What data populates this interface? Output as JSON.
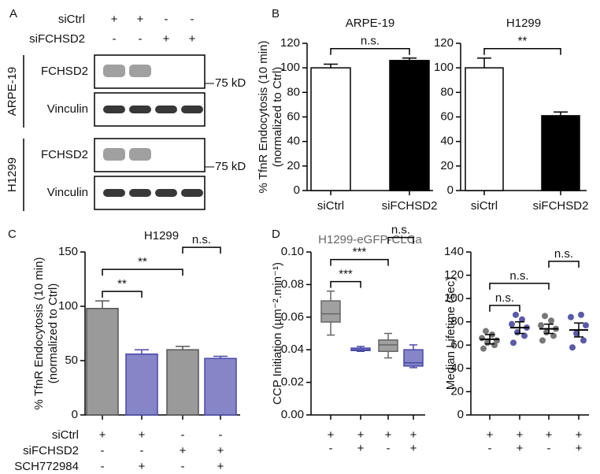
{
  "panel_labels": [
    "A",
    "B",
    "C",
    "D"
  ],
  "panel_a": {
    "rows": [
      {
        "name": "siCtrl",
        "signs": [
          "+",
          "+",
          "-",
          "-"
        ]
      },
      {
        "name": "siFCHSD2",
        "signs": [
          "-",
          "-",
          "+",
          "+"
        ]
      }
    ],
    "cell_lines": [
      {
        "name": "ARPE-19",
        "blots": [
          "FCHSD2",
          "Vinculin"
        ],
        "marker": "75 kD"
      },
      {
        "name": "H1299",
        "blots": [
          "FCHSD2",
          "Vinculin"
        ],
        "marker": "75 kD"
      }
    ]
  },
  "chart_data": [
    {
      "type": "bar",
      "title": "ARPE-19",
      "ylabel": [
        "% TfnR Endocytosis (10 min)",
        "(normalized to Ctrl)"
      ],
      "categories": [
        "siCtrl",
        "siFCHSD2"
      ],
      "values": [
        100,
        106
      ],
      "errors": [
        3,
        2
      ],
      "colors": [
        "#ffffff",
        "#000000"
      ],
      "edge_colors": [
        "#000000",
        "#000000"
      ],
      "ylim": [
        0,
        120
      ],
      "yticks": [
        0,
        20,
        40,
        60,
        80,
        100,
        120
      ],
      "annotations": [
        {
          "text": "n.s.",
          "from": 0,
          "to": 1
        }
      ]
    },
    {
      "type": "bar",
      "title": "H1299",
      "categories": [
        "siCtrl",
        "siFCHSD2"
      ],
      "values": [
        100,
        61
      ],
      "errors": [
        8,
        3
      ],
      "colors": [
        "#ffffff",
        "#000000"
      ],
      "edge_colors": [
        "#000000",
        "#000000"
      ],
      "ylim": [
        0,
        120
      ],
      "yticks": [
        0,
        20,
        40,
        60,
        80,
        100,
        120
      ],
      "annotations": [
        {
          "text": "**",
          "from": 0,
          "to": 1
        }
      ]
    },
    {
      "type": "bar",
      "title": "H1299",
      "ylabel": [
        "% TfnR Endocytosis (10 min)",
        "(normalized to Ctrl)"
      ],
      "values": [
        98,
        56,
        60,
        52
      ],
      "errors": [
        7,
        4,
        3,
        2
      ],
      "colors": [
        "#9a9a9a",
        "#8585c8",
        "#9a9a9a",
        "#8585c8"
      ],
      "edge_colors": [
        "#555555",
        "#4848a8",
        "#555555",
        "#4848a8"
      ],
      "ylim": [
        0,
        150
      ],
      "yticks": [
        0,
        50,
        100,
        150
      ],
      "annotations": [
        {
          "text": "**",
          "from": 0,
          "to": 1
        },
        {
          "text": "**",
          "from": 0,
          "to": 2
        },
        {
          "text": "n.s.",
          "from": 2,
          "to": 3
        }
      ],
      "conditions": [
        {
          "name": "siCtrl",
          "signs": [
            "+",
            "+",
            "-",
            "-"
          ]
        },
        {
          "name": "siFCHSD2",
          "signs": [
            "-",
            "-",
            "+",
            "+"
          ]
        },
        {
          "name": "SCH772984",
          "signs": [
            "-",
            "+",
            "-",
            "+"
          ]
        }
      ]
    },
    {
      "type": "box",
      "title": "H1299-eGFP-CLCa",
      "ylabel": [
        "CCP Initiation (µm⁻².min⁻¹)"
      ],
      "boxes": [
        {
          "min": 0.049,
          "q1": 0.057,
          "median": 0.062,
          "q3": 0.07,
          "max": 0.076
        },
        {
          "min": 0.039,
          "q1": 0.0395,
          "median": 0.04,
          "q3": 0.041,
          "max": 0.042
        },
        {
          "min": 0.035,
          "q1": 0.039,
          "median": 0.043,
          "q3": 0.046,
          "max": 0.05
        },
        {
          "min": 0.029,
          "q1": 0.03,
          "median": 0.032,
          "q3": 0.04,
          "max": 0.043
        }
      ],
      "colors": [
        "#a0a0a0",
        "#8585c8",
        "#a0a0a0",
        "#8585c8"
      ],
      "edge_colors": [
        "#666666",
        "#4848a8",
        "#666666",
        "#4848a8"
      ],
      "ylim": [
        0,
        0.1
      ],
      "yticks": [
        {
          "value": 0,
          "label": "0.00"
        },
        {
          "value": 0.02,
          "label": "0.02"
        },
        {
          "value": 0.04,
          "label": "0.04"
        },
        {
          "value": 0.06,
          "label": "0.06"
        },
        {
          "value": 0.08,
          "label": "0.08"
        },
        {
          "value": 0.1,
          "label": "0.10"
        }
      ],
      "annotations": [
        {
          "text": "***",
          "from": 0,
          "to": 1
        },
        {
          "text": "***",
          "from": 0,
          "to": 2
        },
        {
          "text": "n.s.",
          "from": 2,
          "to": 3
        }
      ],
      "conditions": [
        [
          "+",
          "+",
          "+",
          "+"
        ],
        [
          "-",
          "+",
          "-",
          "+"
        ]
      ]
    },
    {
      "type": "dot",
      "ylabel": [
        "Median Lifetime (sec)"
      ],
      "groups": [
        {
          "points": [
            57,
            60,
            62,
            64,
            66,
            69,
            72
          ],
          "mean": 65,
          "sem": 4,
          "color": "#777777"
        },
        {
          "points": [
            62,
            68,
            71,
            75,
            78,
            82,
            86
          ],
          "mean": 75,
          "sem": 5,
          "color": "#5a5aa8"
        },
        {
          "points": [
            64,
            68,
            71,
            74,
            77,
            81,
            85
          ],
          "mean": 74,
          "sem": 4,
          "color": "#777777"
        },
        {
          "points": [
            58,
            64,
            70,
            77,
            84,
            86
          ],
          "mean": 73,
          "sem": 6,
          "color": "#5a5aa8"
        }
      ],
      "ylim": [
        0,
        140
      ],
      "yticks": [
        0,
        20,
        40,
        60,
        80,
        100,
        120,
        140
      ],
      "annotations": [
        {
          "text": "n.s.",
          "from": 0,
          "to": 1
        },
        {
          "text": "n.s.",
          "from": 0,
          "to": 2
        },
        {
          "text": "n.s.",
          "from": 2,
          "to": 3
        }
      ],
      "conditions": [
        [
          "+",
          "+",
          "+",
          "+"
        ],
        [
          "-",
          "+",
          "-",
          "+"
        ]
      ]
    }
  ]
}
